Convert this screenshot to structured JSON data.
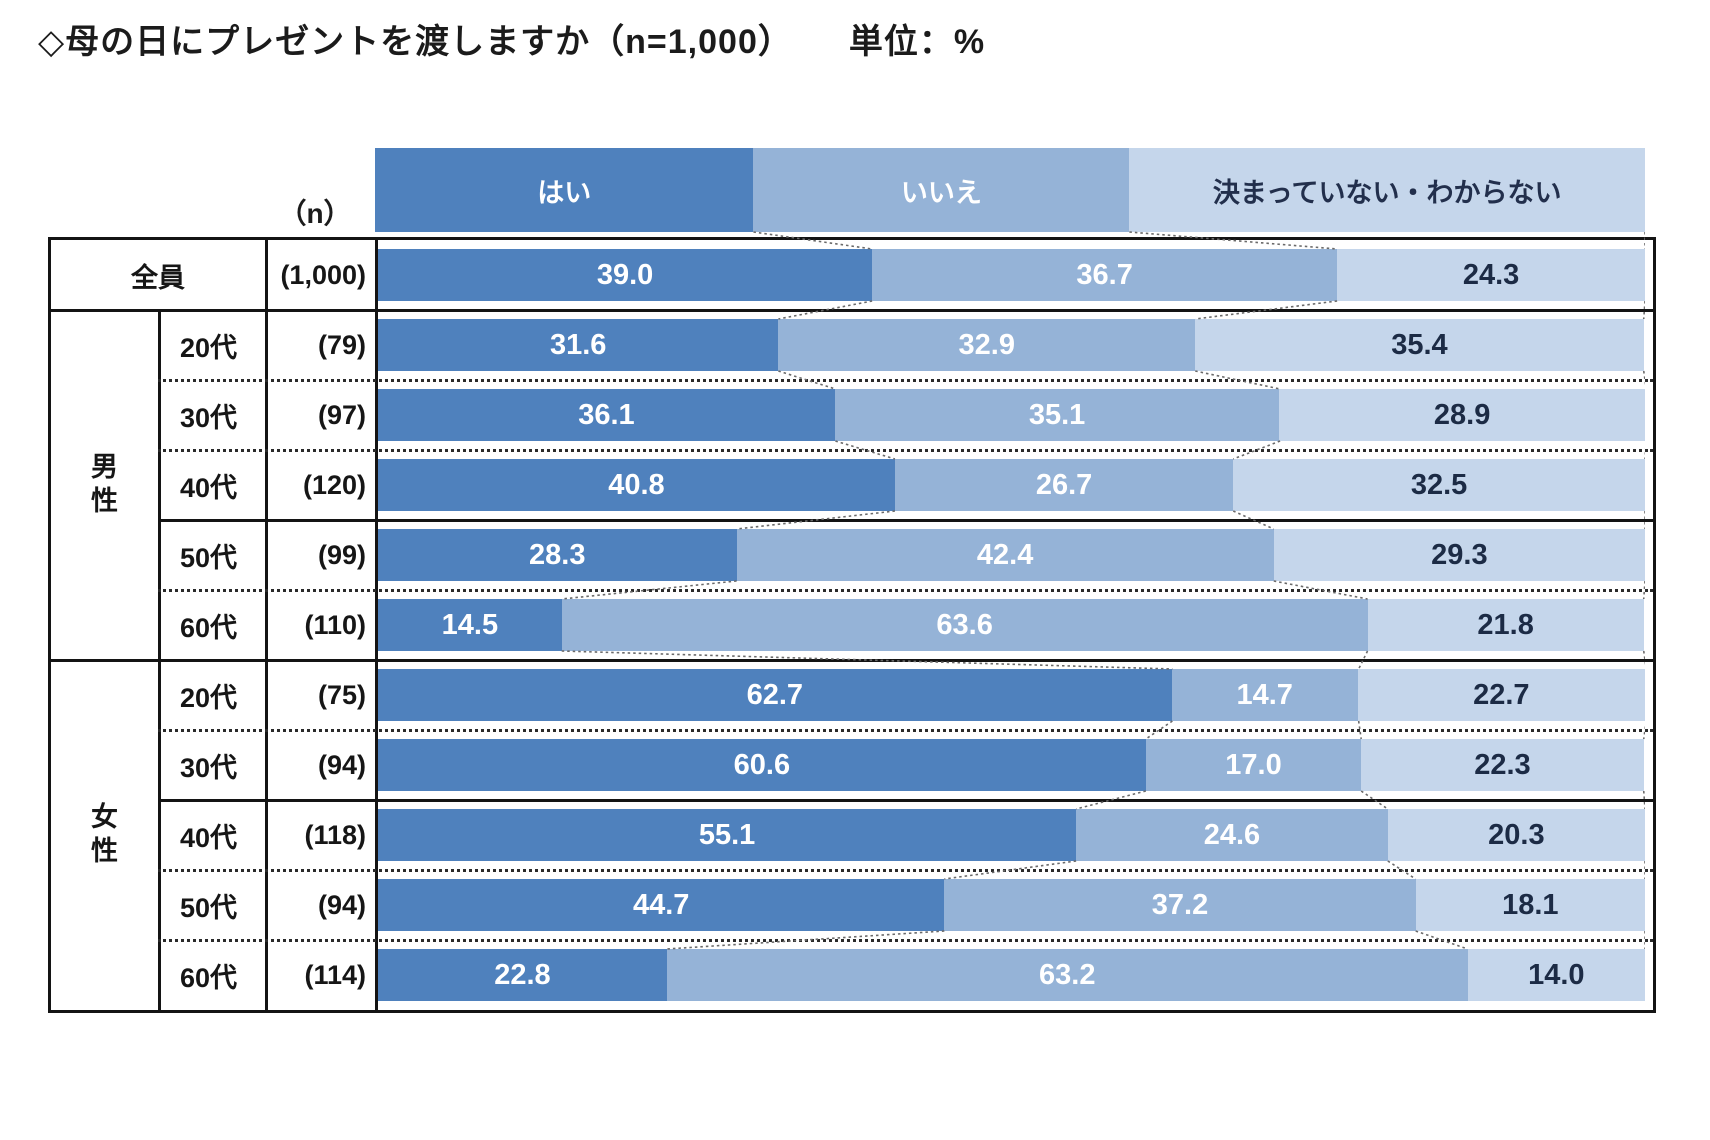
{
  "title": {
    "main": "◇母の日にプレゼントを渡しますか（n=1,000）",
    "unit": "単位：%"
  },
  "n_column_header": "（n）",
  "colors": {
    "series": [
      "#4f81bd",
      "#95b3d7",
      "#c5d6eb"
    ],
    "value_text": [
      "#ffffff",
      "#ffffff",
      "#1c2b45"
    ],
    "legend_text": [
      "#ffffff",
      "#ffffff",
      "#222f4c"
    ],
    "border": "#141414",
    "connector": "#6a6a6a"
  },
  "chart_data": {
    "type": "bar",
    "stacked": true,
    "orientation": "horizontal",
    "value_unit": "%",
    "value_format": "0.0",
    "title": "母の日にプレゼントを渡しますか",
    "sample_size": "n=1,000",
    "legend": {
      "labels": [
        "はい",
        "いいえ",
        "決まっていない・わからない"
      ],
      "position": "top",
      "widths_pct": [
        29.8,
        29.6,
        40.6
      ]
    },
    "groups": [
      {
        "label": "全員",
        "rows": [
          {
            "age": "",
            "n": "(1,000)",
            "values": [
              39.0,
              36.7,
              24.3
            ]
          }
        ]
      },
      {
        "label": "男性",
        "rows": [
          {
            "age": "20代",
            "n": "(79)",
            "values": [
              31.6,
              32.9,
              35.4
            ]
          },
          {
            "age": "30代",
            "n": "(97)",
            "values": [
              36.1,
              35.1,
              28.9
            ]
          },
          {
            "age": "40代",
            "n": "(120)",
            "values": [
              40.8,
              26.7,
              32.5
            ]
          },
          {
            "age": "50代",
            "n": "(99)",
            "values": [
              28.3,
              42.4,
              29.3
            ]
          },
          {
            "age": "60代",
            "n": "(110)",
            "values": [
              14.5,
              63.6,
              21.8
            ]
          }
        ]
      },
      {
        "label": "女性",
        "rows": [
          {
            "age": "20代",
            "n": "(75)",
            "values": [
              62.7,
              14.7,
              22.7
            ]
          },
          {
            "age": "30代",
            "n": "(94)",
            "values": [
              60.6,
              17.0,
              22.3
            ]
          },
          {
            "age": "40代",
            "n": "(118)",
            "values": [
              55.1,
              24.6,
              20.3
            ]
          },
          {
            "age": "50代",
            "n": "(94)",
            "values": [
              44.7,
              37.2,
              18.1
            ]
          },
          {
            "age": "60代",
            "n": "(114)",
            "values": [
              22.8,
              63.2,
              14.0
            ]
          }
        ]
      }
    ]
  }
}
